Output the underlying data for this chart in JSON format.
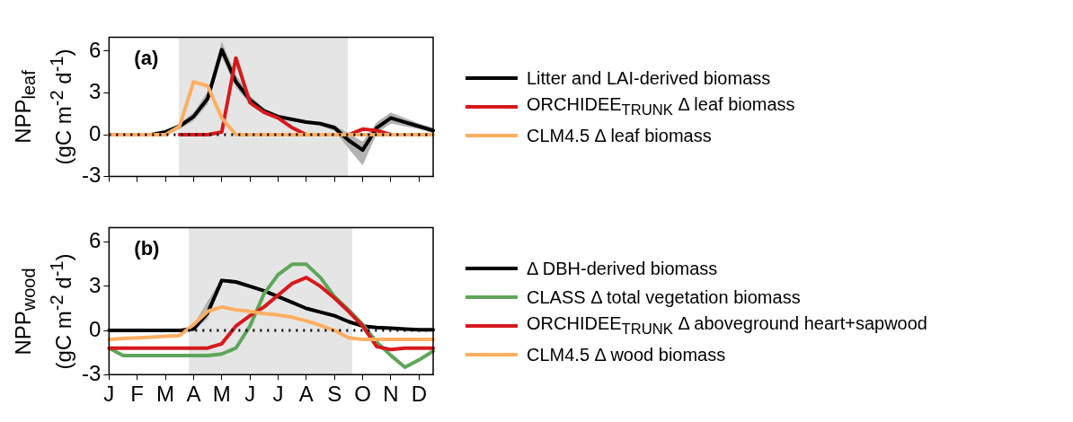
{
  "chart_data": [
    {
      "type": "line",
      "ylabel": "NPP$_{leaf}$\n(gC m$^{-2}$ d$^{-1}$)",
      "annotations": [
        "(a)"
      ],
      "categories": [
        null,
        null,
        null,
        null,
        null,
        null,
        null,
        null,
        null,
        null,
        null,
        null,
        null,
        null,
        null,
        null,
        null,
        null,
        null,
        null,
        null,
        null,
        null,
        null
      ],
      "ylim": [
        -3,
        7
      ],
      "yticks": [
        -3,
        0,
        3,
        6
      ],
      "tick_labels": "y",
      "grid": false,
      "legend": "right",
      "marker": "none",
      "line_style": "solid",
      "ref_lines": [
        {
          "axis": "y",
          "value": 0,
          "color": "#000000",
          "line_style": "dotted"
        }
      ],
      "series": [
        {
          "name": "Litter and LAI-derived biomass",
          "color": "#000000",
          "values": [
            null,
            null,
            null,
            0,
            0.2,
            0.6,
            1.3,
            2.6,
            6.1,
            3.8,
            2.5,
            1.7,
            1.3,
            1.1,
            0.9,
            0.8,
            0.5,
            -0.4,
            -1.1,
            0.5,
            1.2,
            0.9,
            0.6,
            0.3
          ],
          "lower": [
            0,
            0,
            0,
            0,
            0.1,
            0.4,
            1.0,
            2.2,
            5.6,
            3.4,
            2.2,
            1.5,
            1.2,
            1.0,
            0.8,
            0.6,
            0.3,
            -1.0,
            -2.2,
            0.1,
            0.8,
            0.6,
            0.4,
            0.1
          ],
          "upper": [
            0,
            0,
            0,
            0,
            0.3,
            0.8,
            1.6,
            3.1,
            6.7,
            4.3,
            2.8,
            1.9,
            1.4,
            1.2,
            1.0,
            0.9,
            0.7,
            0.1,
            -0.5,
            0.9,
            1.6,
            1.2,
            0.8,
            0.5
          ]
        },
        {
          "name": "ORCHIDEE$_{TRUNK}$ Δ leaf biomass",
          "color": "#d7191c",
          "values": [
            null,
            null,
            null,
            null,
            null,
            0,
            0,
            0,
            0.2,
            5.5,
            2.3,
            1.6,
            1.2,
            0.5,
            0,
            null,
            null,
            0,
            0.4,
            0.3,
            0,
            null,
            null,
            null
          ]
        },
        {
          "name": "CLM4.5  Δ leaf biomass",
          "color": "#fdae61",
          "values": [
            0,
            0,
            0,
            0,
            0,
            0.6,
            3.8,
            3.5,
            1.2,
            0,
            0,
            0,
            0,
            0,
            0,
            0,
            0,
            0,
            0,
            0,
            0,
            0,
            0,
            0
          ]
        }
      ]
    },
    {
      "type": "line",
      "ylabel": "NPP$_{wood}$\n(gC m$^{-2}$ d$^{-1}$)",
      "annotations": [
        "(b)"
      ],
      "categories": [
        "J",
        null,
        "F",
        null,
        "M",
        null,
        "A",
        null,
        "M",
        null,
        "J",
        null,
        "J",
        null,
        "A",
        null,
        "S",
        null,
        "O",
        null,
        "N",
        null,
        "D",
        null
      ],
      "ylim": [
        -3,
        7
      ],
      "yticks": [
        -3,
        0,
        3,
        6
      ],
      "grid": false,
      "legend": "right",
      "marker": "none",
      "line_style": "solid",
      "ref_lines": [
        {
          "axis": "y",
          "value": 0,
          "color": "#000000",
          "line_style": "dotted"
        }
      ],
      "series": [
        {
          "name": "Δ DBH-derived biomass",
          "color": "#000000",
          "values": [
            0,
            0,
            0,
            0,
            0,
            0,
            0.1,
            1.2,
            3.4,
            3.3,
            3.0,
            2.7,
            2.3,
            1.9,
            1.5,
            1.25,
            1.0,
            0.6,
            0.3,
            0.2,
            0.15,
            0.1,
            0.05,
            0.05
          ],
          "lower": [
            0,
            0,
            0,
            0,
            0,
            0,
            0,
            0.8,
            3.3,
            3.2,
            2.9,
            2.6,
            2.2,
            1.8,
            1.4,
            1.15,
            0.9,
            0.5,
            0.2,
            0.1,
            0.1,
            0.05,
            0,
            0
          ],
          "upper": [
            0,
            0,
            0,
            0,
            0,
            0,
            0.4,
            2.0,
            3.5,
            3.4,
            3.1,
            2.8,
            2.4,
            2.0,
            1.6,
            1.35,
            1.1,
            0.7,
            0.4,
            0.3,
            0.2,
            0.15,
            0.1,
            0.1
          ]
        },
        {
          "name": "CLASS Δ total vegetation biomass",
          "color": "#5fa55a",
          "values": [
            -1.2,
            -1.7,
            -1.7,
            -1.7,
            -1.7,
            -1.7,
            -1.7,
            -1.7,
            -1.6,
            -1.2,
            0.3,
            2.5,
            3.8,
            4.5,
            4.5,
            3.6,
            2.3,
            1.4,
            0.4,
            -0.8,
            -1.7,
            -2.5,
            -2.0,
            -1.4
          ]
        },
        {
          "name": "ORCHIDEE$_{TRUNK}$ Δ aboveground heart+sapwood",
          "color": "#d7191c",
          "values": [
            -1.2,
            -1.2,
            -1.2,
            -1.2,
            -1.2,
            -1.2,
            -1.2,
            -1.2,
            -0.9,
            0.3,
            1.0,
            1.6,
            2.4,
            3.2,
            3.6,
            3.0,
            2.2,
            1.3,
            0.3,
            -1.1,
            -1.3,
            -1.2,
            -1.2,
            -1.2
          ]
        },
        {
          "name": "CLM4.5  Δ wood biomass",
          "color": "#fdae61",
          "values": [
            -0.6,
            -0.55,
            -0.5,
            -0.45,
            -0.4,
            -0.35,
            0.4,
            1.3,
            1.6,
            1.4,
            1.3,
            1.15,
            1.05,
            0.9,
            0.65,
            0.35,
            0.0,
            -0.5,
            -0.6,
            -0.6,
            -0.6,
            -0.6,
            -0.6,
            -0.6
          ]
        }
      ]
    }
  ]
}
